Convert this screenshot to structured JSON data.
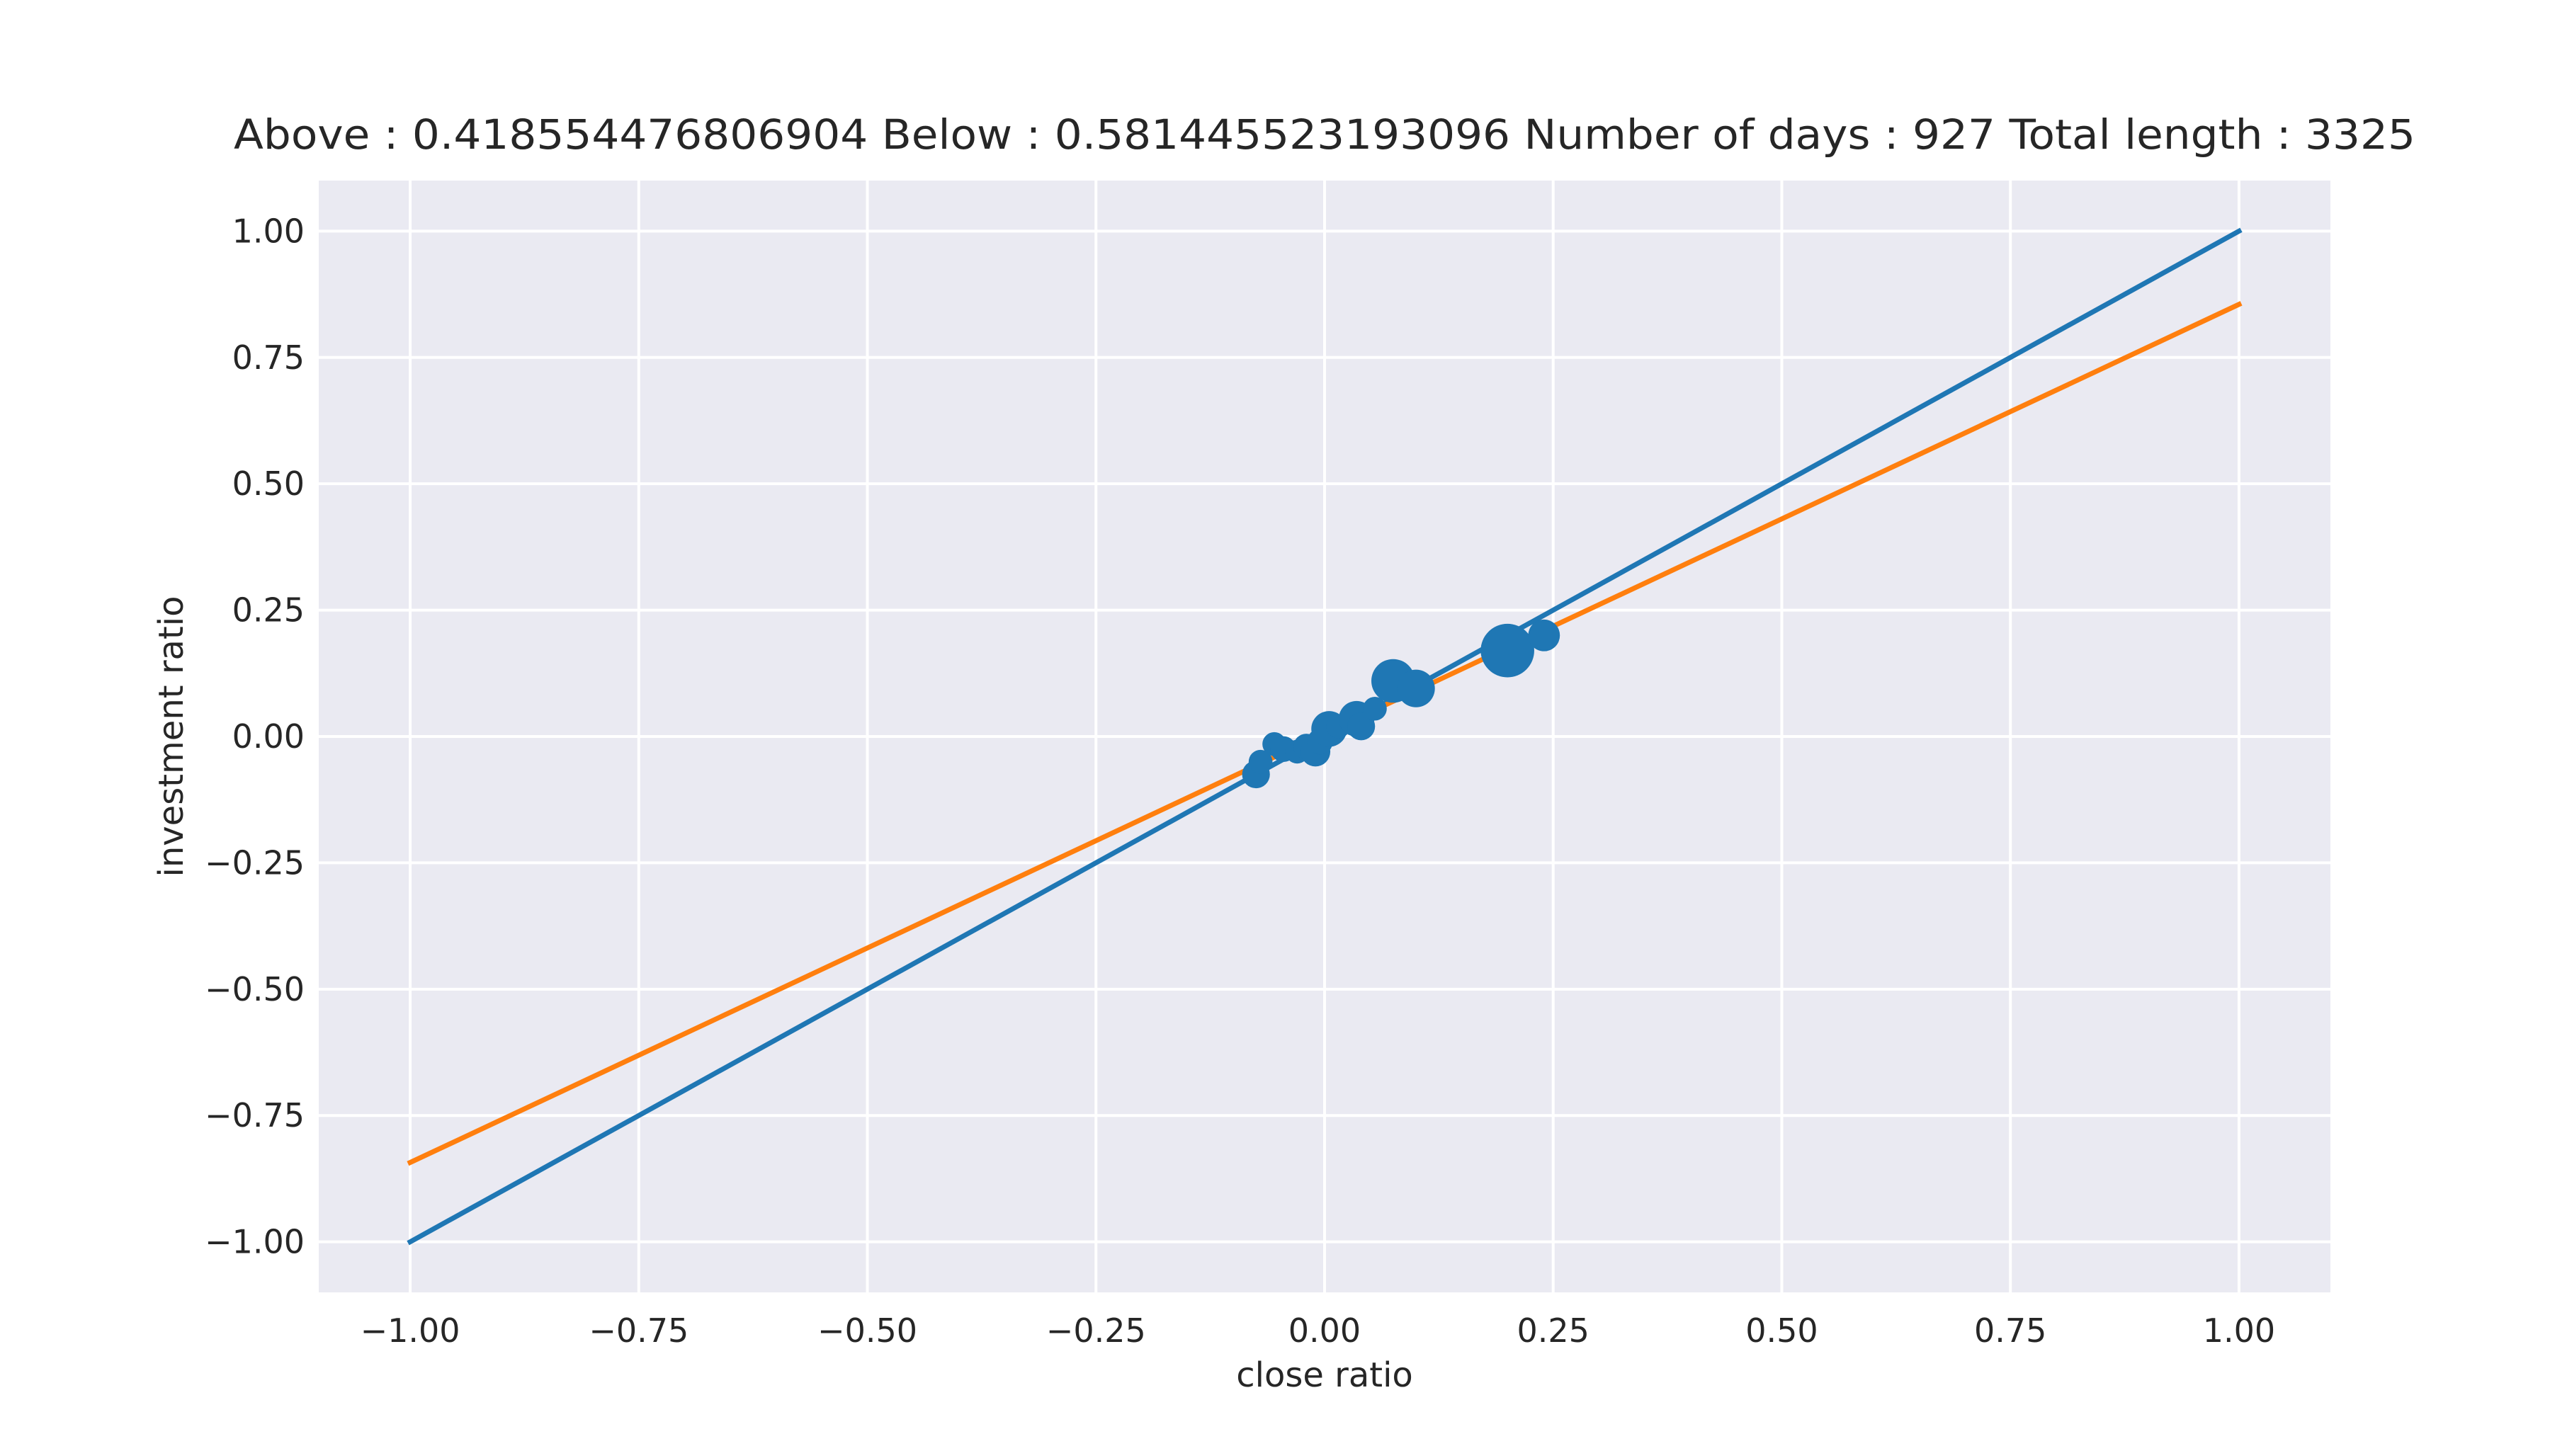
{
  "chart_data": {
    "type": "scatter",
    "title": "Above : 0.418554476806904   Below : 0.581445523193096   Number of days : 927  Total length : 3325",
    "xlabel": "close ratio",
    "ylabel": "investment ratio",
    "xlim": [
      -1.1,
      1.1
    ],
    "ylim": [
      -1.1,
      1.1
    ],
    "x_ticks": [
      -1.0,
      -0.75,
      -0.5,
      -0.25,
      0.0,
      0.25,
      0.5,
      0.75,
      1.0
    ],
    "x_tick_labels": [
      "−1.00",
      "−0.75",
      "−0.50",
      "−0.25",
      "0.00",
      "0.25",
      "0.50",
      "0.75",
      "1.00"
    ],
    "y_ticks": [
      1.0,
      0.75,
      0.5,
      0.25,
      0.0,
      -0.25,
      -0.5,
      -0.75,
      -1.0
    ],
    "y_tick_labels": [
      "1.00",
      "0.75",
      "0.50",
      "0.25",
      "0.00",
      "−0.25",
      "−0.50",
      "−0.75",
      "−1.00"
    ],
    "grid": true,
    "background": "#eaeaf2",
    "lines": [
      {
        "color": "#1f77b4",
        "x": [
          -1.0,
          1.0
        ],
        "y": [
          -1.0,
          1.0
        ]
      },
      {
        "color": "#ff7f0e",
        "x": [
          -1.0,
          1.0
        ],
        "y": [
          -0.843,
          0.855
        ]
      }
    ],
    "points": {
      "color": "#1f77b4",
      "data": [
        {
          "x": -0.075,
          "y": -0.075,
          "size": 14
        },
        {
          "x": -0.07,
          "y": -0.05,
          "size": 12
        },
        {
          "x": -0.055,
          "y": -0.015,
          "size": 12
        },
        {
          "x": -0.045,
          "y": -0.025,
          "size": 13
        },
        {
          "x": -0.03,
          "y": -0.03,
          "size": 12
        },
        {
          "x": -0.02,
          "y": -0.02,
          "size": 13
        },
        {
          "x": -0.01,
          "y": -0.03,
          "size": 15
        },
        {
          "x": -0.005,
          "y": -0.01,
          "size": 13
        },
        {
          "x": 0.005,
          "y": 0.015,
          "size": 18
        },
        {
          "x": 0.015,
          "y": 0.02,
          "size": 12
        },
        {
          "x": 0.035,
          "y": 0.035,
          "size": 18
        },
        {
          "x": 0.04,
          "y": 0.02,
          "size": 14
        },
        {
          "x": 0.055,
          "y": 0.055,
          "size": 12
        },
        {
          "x": 0.075,
          "y": 0.11,
          "size": 22
        },
        {
          "x": 0.1,
          "y": 0.095,
          "size": 19
        },
        {
          "x": 0.2,
          "y": 0.17,
          "size": 27
        },
        {
          "x": 0.24,
          "y": 0.2,
          "size": 16
        }
      ]
    }
  }
}
